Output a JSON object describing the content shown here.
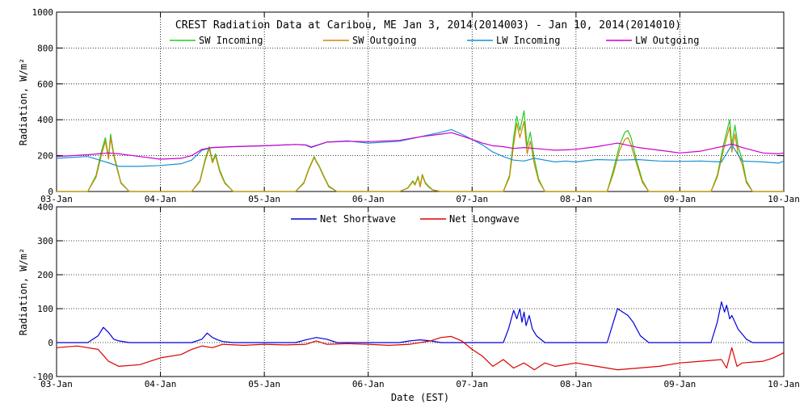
{
  "title": "CREST Radiation Data at Caribou, ME   Jan  3, 2014(2014003) - Jan 10, 2014(2014010)",
  "chart_data": [
    {
      "type": "line",
      "title": "CREST Radiation Data at Caribou, ME   Jan  3, 2014(2014003) - Jan 10, 2014(2014010)",
      "xlabel": "",
      "ylabel": "Radiation, W/m^2",
      "ylim": [
        0,
        1000
      ],
      "yticks": [
        "0",
        "200",
        "400",
        "600",
        "800",
        "1000"
      ],
      "xlim": [
        0,
        7
      ],
      "xtick_labels": [
        "03-Jan",
        "04-Jan",
        "05-Jan",
        "06-Jan",
        "07-Jan",
        "08-Jan",
        "09-Jan",
        "10-Jan"
      ],
      "x_unit": "days since 03-Jan 00:00 EST",
      "grid": true,
      "legend_position": "top",
      "series": [
        {
          "name": "SW Incoming",
          "color": "#22cc22",
          "x": [
            0.0,
            0.3,
            0.38,
            0.43,
            0.47,
            0.5,
            0.52,
            0.55,
            0.58,
            0.62,
            0.7,
            1.3,
            1.38,
            1.43,
            1.47,
            1.5,
            1.53,
            1.57,
            1.62,
            1.7,
            2.3,
            2.38,
            2.43,
            2.48,
            2.5,
            2.53,
            2.57,
            2.62,
            2.7,
            3.3,
            3.38,
            3.43,
            3.45,
            3.48,
            3.5,
            3.52,
            3.55,
            3.58,
            3.62,
            3.7,
            4.3,
            4.36,
            4.4,
            4.43,
            4.46,
            4.5,
            4.53,
            4.56,
            4.6,
            4.64,
            4.7,
            5.3,
            5.36,
            5.42,
            5.47,
            5.5,
            5.53,
            5.58,
            5.64,
            5.7,
            6.3,
            6.36,
            6.42,
            6.45,
            6.48,
            6.5,
            6.53,
            6.56,
            6.6,
            6.64,
            6.7,
            7.0
          ],
          "y": [
            0,
            0,
            90,
            220,
            300,
            190,
            320,
            210,
            140,
            50,
            0,
            0,
            60,
            180,
            250,
            170,
            210,
            120,
            50,
            0,
            0,
            50,
            130,
            195,
            170,
            140,
            90,
            30,
            0,
            0,
            20,
            60,
            40,
            85,
            30,
            95,
            50,
            30,
            10,
            0,
            0,
            90,
            300,
            420,
            340,
            450,
            250,
            330,
            180,
            70,
            0,
            0,
            120,
            260,
            330,
            340,
            300,
            180,
            60,
            0,
            0,
            90,
            260,
            330,
            400,
            260,
            370,
            250,
            180,
            60,
            0,
            0
          ]
        },
        {
          "name": "SW Outgoing",
          "color": "#cc8800",
          "x": [
            0.0,
            0.3,
            0.38,
            0.43,
            0.47,
            0.5,
            0.52,
            0.55,
            0.58,
            0.62,
            0.7,
            1.3,
            1.38,
            1.43,
            1.47,
            1.5,
            1.53,
            1.57,
            1.62,
            1.7,
            2.3,
            2.38,
            2.43,
            2.48,
            2.5,
            2.53,
            2.57,
            2.62,
            2.7,
            3.3,
            3.38,
            3.43,
            3.45,
            3.48,
            3.5,
            3.52,
            3.55,
            3.58,
            3.62,
            3.7,
            4.3,
            4.36,
            4.4,
            4.43,
            4.46,
            4.5,
            4.53,
            4.56,
            4.6,
            4.64,
            4.7,
            5.3,
            5.36,
            5.42,
            5.47,
            5.5,
            5.53,
            5.58,
            5.64,
            5.7,
            6.3,
            6.36,
            6.42,
            6.45,
            6.48,
            6.5,
            6.53,
            6.56,
            6.6,
            6.64,
            6.7,
            7.0
          ],
          "y": [
            0,
            0,
            80,
            200,
            280,
            180,
            300,
            200,
            130,
            45,
            0,
            0,
            55,
            170,
            240,
            160,
            200,
            110,
            45,
            0,
            0,
            45,
            125,
            190,
            165,
            135,
            85,
            25,
            0,
            0,
            18,
            55,
            35,
            80,
            25,
            90,
            45,
            25,
            8,
            0,
            0,
            80,
            260,
            380,
            300,
            390,
            210,
            280,
            150,
            60,
            0,
            0,
            100,
            230,
            290,
            300,
            260,
            160,
            50,
            0,
            0,
            80,
            230,
            300,
            360,
            220,
            320,
            210,
            150,
            50,
            0,
            0
          ]
        },
        {
          "name": "LW Incoming",
          "color": "#1a8fd6",
          "x": [
            0.0,
            0.3,
            0.5,
            0.6,
            0.8,
            1.0,
            1.2,
            1.3,
            1.4,
            1.5,
            1.7,
            2.0,
            2.3,
            2.4,
            2.45,
            2.6,
            2.8,
            3.0,
            3.3,
            3.5,
            3.7,
            3.8,
            3.9,
            4.0,
            4.1,
            4.2,
            4.3,
            4.4,
            4.5,
            4.6,
            4.7,
            4.8,
            4.9,
            5.0,
            5.2,
            5.4,
            5.6,
            5.8,
            6.0,
            6.2,
            6.4,
            6.5,
            6.6,
            6.8,
            6.95,
            7.0
          ],
          "y": [
            185,
            195,
            160,
            140,
            140,
            145,
            155,
            175,
            230,
            245,
            250,
            255,
            262,
            258,
            245,
            275,
            282,
            270,
            280,
            305,
            330,
            345,
            320,
            290,
            260,
            220,
            195,
            175,
            170,
            185,
            175,
            165,
            170,
            165,
            178,
            175,
            178,
            170,
            168,
            170,
            165,
            260,
            170,
            165,
            158,
            170
          ]
        },
        {
          "name": "LW Outgoing",
          "color": "#cc00cc",
          "x": [
            0.0,
            0.3,
            0.5,
            0.6,
            0.8,
            1.0,
            1.2,
            1.3,
            1.4,
            1.5,
            1.7,
            2.0,
            2.3,
            2.4,
            2.45,
            2.6,
            2.8,
            3.0,
            3.3,
            3.5,
            3.7,
            3.8,
            3.9,
            4.0,
            4.1,
            4.2,
            4.3,
            4.4,
            4.5,
            4.6,
            4.7,
            4.8,
            4.9,
            5.0,
            5.2,
            5.4,
            5.6,
            5.8,
            6.0,
            6.2,
            6.4,
            6.5,
            6.6,
            6.8,
            6.95,
            7.0
          ],
          "y": [
            195,
            205,
            215,
            210,
            195,
            180,
            185,
            200,
            235,
            245,
            250,
            255,
            262,
            260,
            248,
            275,
            280,
            278,
            285,
            305,
            320,
            328,
            310,
            290,
            270,
            255,
            250,
            240,
            245,
            240,
            235,
            230,
            232,
            235,
            250,
            270,
            245,
            230,
            215,
            225,
            250,
            265,
            245,
            215,
            210,
            215
          ]
        }
      ]
    },
    {
      "type": "line",
      "title": "",
      "xlabel": "Date (EST)",
      "ylabel": "Radiation, W/m^2",
      "ylim": [
        -100,
        400
      ],
      "yticks": [
        "-100",
        "0",
        "100",
        "200",
        "300",
        "400"
      ],
      "xlim": [
        0,
        7
      ],
      "xtick_labels": [
        "03-Jan",
        "04-Jan",
        "05-Jan",
        "06-Jan",
        "07-Jan",
        "08-Jan",
        "09-Jan",
        "10-Jan"
      ],
      "x_unit": "days since 03-Jan 00:00 EST",
      "grid": true,
      "legend_position": "top",
      "series": [
        {
          "name": "Net Shortwave",
          "color": "#0000dd",
          "x": [
            0.0,
            0.3,
            0.4,
            0.45,
            0.5,
            0.55,
            0.6,
            0.7,
            1.3,
            1.4,
            1.45,
            1.5,
            1.55,
            1.6,
            1.7,
            2.3,
            2.4,
            2.5,
            2.6,
            2.7,
            3.3,
            3.4,
            3.5,
            3.6,
            3.7,
            4.3,
            4.35,
            4.4,
            4.43,
            4.46,
            4.48,
            4.5,
            4.52,
            4.55,
            4.58,
            4.62,
            4.7,
            5.3,
            5.36,
            5.4,
            5.45,
            5.5,
            5.55,
            5.62,
            5.7,
            6.3,
            6.36,
            6.4,
            6.43,
            6.45,
            6.48,
            6.5,
            6.53,
            6.56,
            6.6,
            6.64,
            6.7,
            7.0
          ],
          "y": [
            0,
            0,
            20,
            45,
            30,
            10,
            5,
            0,
            0,
            10,
            28,
            15,
            8,
            3,
            0,
            0,
            8,
            15,
            10,
            0,
            0,
            5,
            8,
            5,
            0,
            0,
            40,
            95,
            70,
            100,
            60,
            90,
            50,
            80,
            40,
            20,
            0,
            0,
            60,
            100,
            90,
            80,
            60,
            20,
            0,
            0,
            60,
            120,
            90,
            110,
            70,
            80,
            60,
            40,
            25,
            10,
            0,
            0
          ]
        },
        {
          "name": "Net Longwave",
          "color": "#dd0000",
          "x": [
            0.0,
            0.2,
            0.4,
            0.5,
            0.6,
            0.8,
            1.0,
            1.2,
            1.3,
            1.4,
            1.5,
            1.6,
            1.8,
            2.0,
            2.2,
            2.4,
            2.5,
            2.6,
            2.8,
            3.0,
            3.2,
            3.4,
            3.6,
            3.7,
            3.8,
            3.9,
            4.0,
            4.1,
            4.2,
            4.3,
            4.4,
            4.5,
            4.6,
            4.7,
            4.8,
            5.0,
            5.2,
            5.4,
            5.6,
            5.8,
            6.0,
            6.2,
            6.4,
            6.45,
            6.5,
            6.55,
            6.6,
            6.8,
            6.9,
            7.0
          ],
          "y": [
            -15,
            -10,
            -20,
            -55,
            -70,
            -65,
            -45,
            -35,
            -20,
            -10,
            -15,
            -5,
            -8,
            -5,
            -7,
            -5,
            5,
            -5,
            -3,
            -5,
            -8,
            -5,
            5,
            15,
            18,
            5,
            -20,
            -40,
            -70,
            -50,
            -75,
            -60,
            -80,
            -60,
            -70,
            -60,
            -70,
            -80,
            -75,
            -70,
            -60,
            -55,
            -50,
            -75,
            -15,
            -70,
            -60,
            -55,
            -45,
            -30
          ]
        }
      ]
    }
  ]
}
